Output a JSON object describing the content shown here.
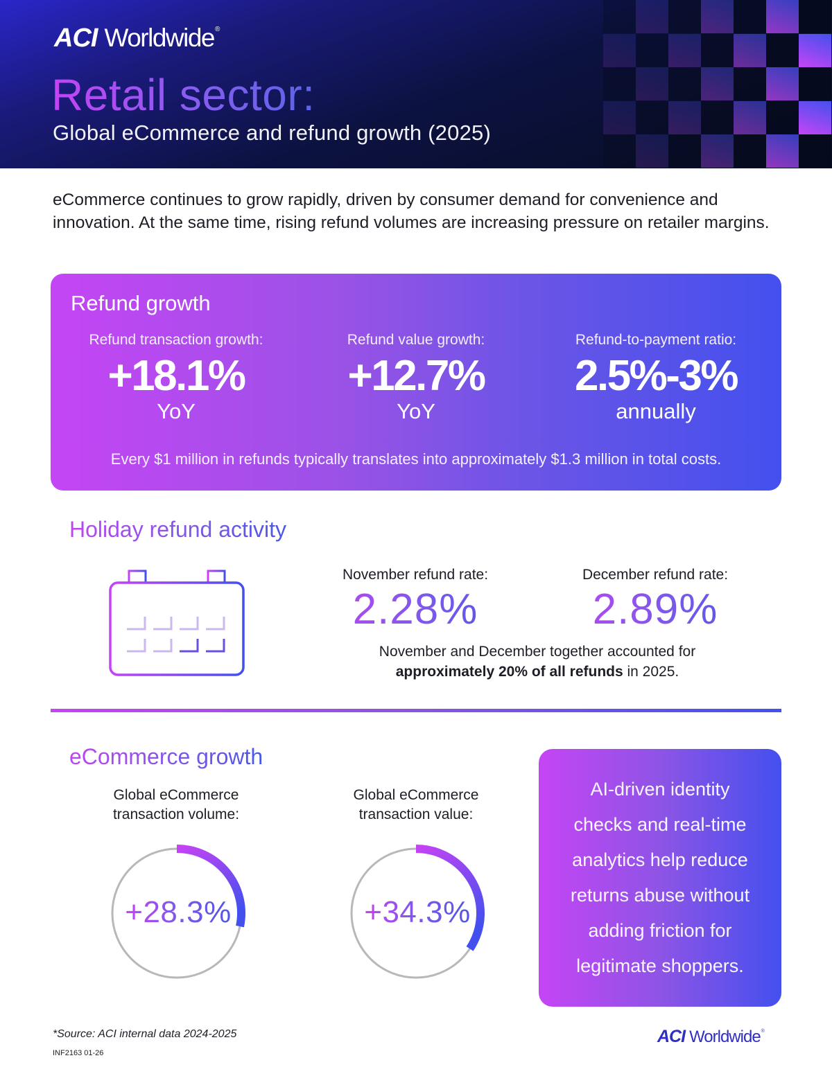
{
  "brand": {
    "logo_mark": "ACI",
    "logo_text": "Worldwide",
    "registered": "®",
    "colors": {
      "magenta": "#c545f5",
      "violet": "#7c59ea",
      "blue": "#4450ee",
      "navy": "#070d22"
    }
  },
  "header": {
    "title": "Retail sector:",
    "subtitle": "Global eCommerce and refund growth (2025)"
  },
  "intro": "eCommerce continues to grow rapidly, driven by consumer demand for convenience and innovation. At the same time, rising refund volumes are increasing pressure on retailer margins.",
  "refund_growth": {
    "title": "Refund growth",
    "stats": [
      {
        "label": "Refund transaction growth:",
        "value": "+18.1%",
        "unit": "YoY"
      },
      {
        "label": "Refund value growth:",
        "value": "+12.7%",
        "unit": "YoY"
      },
      {
        "label": "Refund-to-payment ratio:",
        "value": "2.5%-3%",
        "unit": "annually"
      }
    ],
    "note": "Every $1 million in refunds typically translates into approximately $1.3 million in total costs."
  },
  "holiday": {
    "title": "Holiday refund activity",
    "icon": "calendar-icon",
    "months": [
      {
        "label": "November refund rate:",
        "value": "2.28%"
      },
      {
        "label": "December refund rate:",
        "value": "2.89%"
      }
    ],
    "note_line1": "November and December together accounted for",
    "note_bold": "approximately 20% of all refunds",
    "note_tail": " in 2025."
  },
  "ecommerce": {
    "title": "eCommerce growth",
    "gauges": [
      {
        "label_line1": "Global eCommerce",
        "label_line2": "transaction volume:",
        "value": "+28.3%",
        "percent": 28.3
      },
      {
        "label_line1": "Global eCommerce",
        "label_line2": "transaction value:",
        "value": "+34.3%",
        "percent": 34.3
      }
    ],
    "callout_lines": [
      "AI-driven identity",
      "checks and real-time",
      "analytics help reduce",
      "returns abuse without",
      "adding friction for",
      "legitimate shoppers."
    ]
  },
  "footer": {
    "source": "*Source: ACI internal data 2024-2025",
    "doc_id": "INF2163 01-26"
  }
}
